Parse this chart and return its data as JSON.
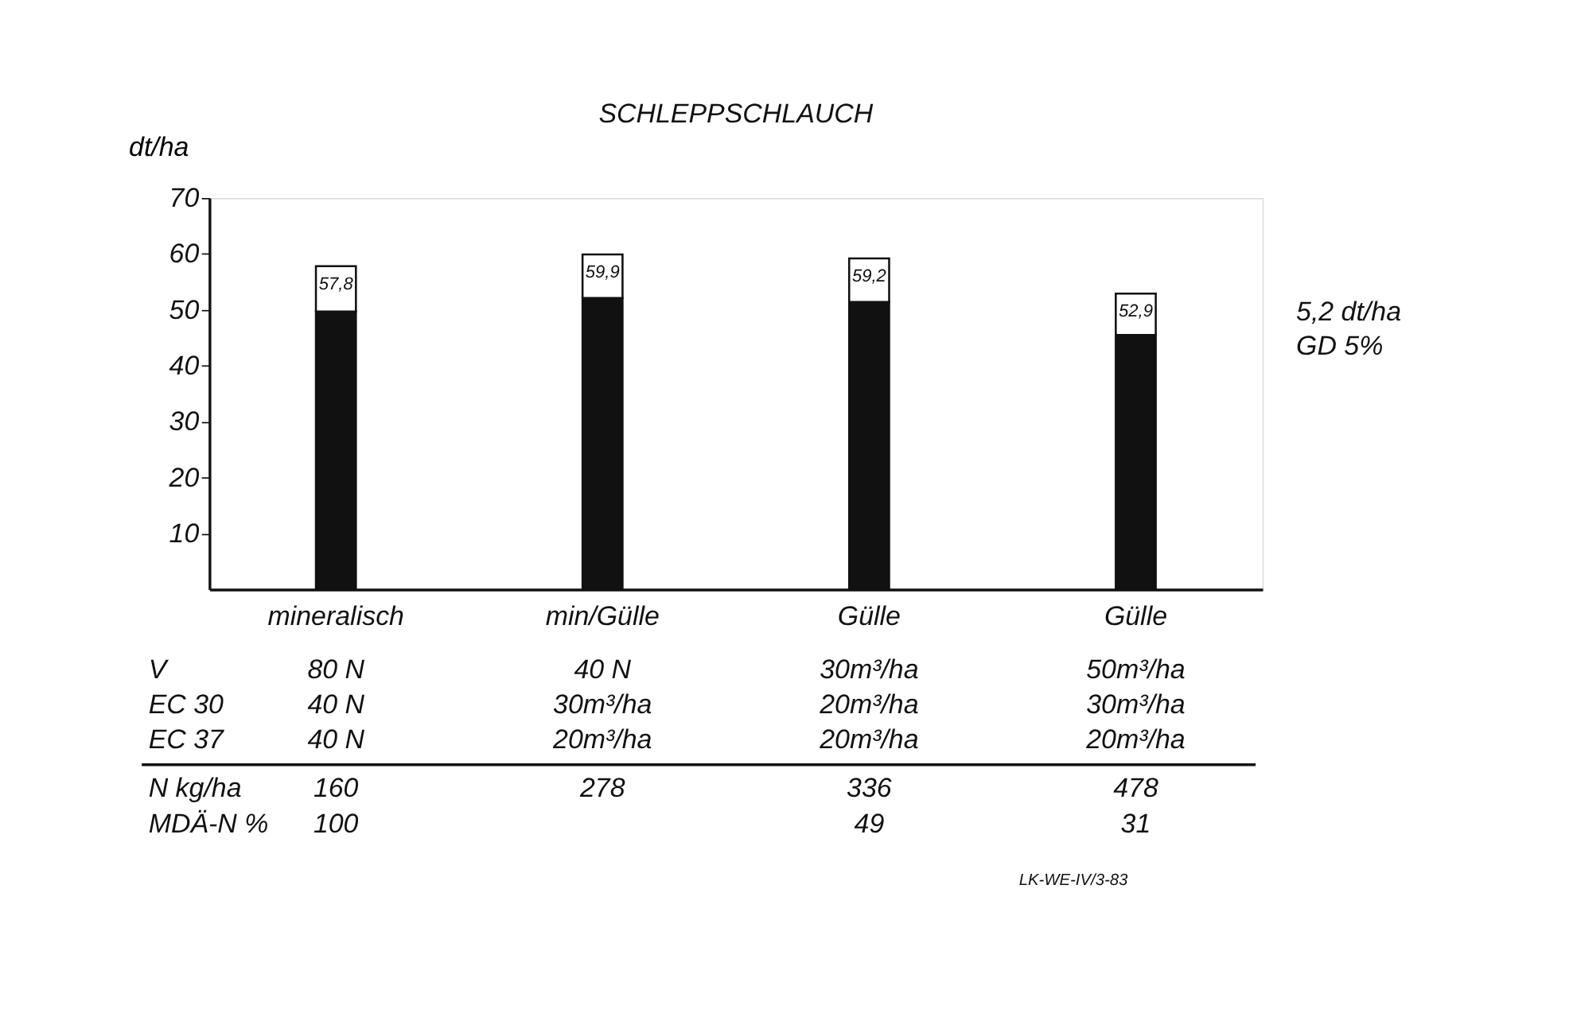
{
  "chart_data": {
    "type": "bar",
    "title": "SCHLEPPSCHLAUCH",
    "ylabel": "dt/ha",
    "categories": [
      "mineralisch",
      "min/Gülle",
      "Gülle",
      "Gülle"
    ],
    "stacked": true,
    "series": [
      {
        "color": "#111111",
        "values": [
          49.7,
          52.1,
          51.4,
          45.5
        ]
      },
      {
        "color": "#ffffff",
        "values": [
          8.1,
          7.8,
          7.8,
          7.4
        ]
      }
    ],
    "totals": [
      "57,8",
      "59,9",
      "59,2",
      "52,9"
    ],
    "ylim": [
      0,
      70
    ],
    "yticks": [
      10,
      20,
      30,
      40,
      50,
      60,
      70
    ],
    "grid": false,
    "legend": false,
    "annotations": [
      "5,2 dt/ha\nGD 5%",
      "V",
      "80 N",
      "40 N",
      "30m³/ha",
      "50m³/ha",
      "EC 30",
      "40 N",
      "30m³/ha",
      "20m³/ha",
      "30m³/ha",
      "EC 37",
      "40 N",
      "20m³/ha",
      "20m³/ha",
      "20m³/ha",
      "N kg/ha",
      "160",
      "278",
      "336",
      "478",
      "MDÄ-N %",
      "100",
      null,
      "49",
      "31",
      "LK-WE-IV/3-83"
    ]
  }
}
